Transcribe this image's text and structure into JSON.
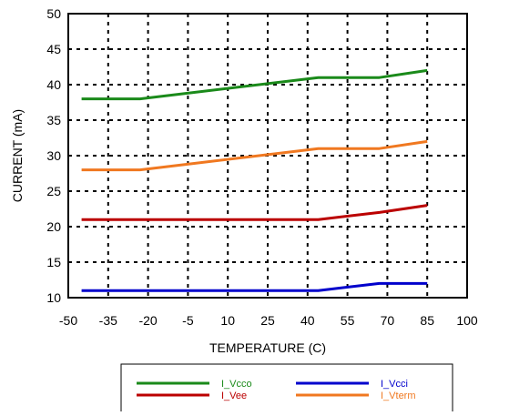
{
  "chart_data": {
    "type": "line",
    "title": "",
    "xlabel": "TEMPERATURE (C)",
    "ylabel": "CURRENT (mA)",
    "xlim": [
      -50,
      100
    ],
    "ylim": [
      10,
      50
    ],
    "x_ticks": [
      -50,
      -35,
      -20,
      -5,
      10,
      25,
      40,
      55,
      70,
      85,
      100
    ],
    "y_ticks": [
      10,
      15,
      20,
      25,
      30,
      35,
      40,
      45,
      50
    ],
    "grid": true,
    "legend_position": "bottom",
    "series": [
      {
        "name": "I_Vcco",
        "color": "#1a8a1a",
        "x": [
          -45,
          -23,
          44,
          67,
          85
        ],
        "y": [
          38,
          38,
          41,
          41,
          42
        ]
      },
      {
        "name": "I_Vcci",
        "color": "#0000cc",
        "x": [
          -45,
          -23,
          44,
          67,
          85
        ],
        "y": [
          11,
          11,
          11,
          12,
          12
        ]
      },
      {
        "name": "I_Vee",
        "color": "#bb0000",
        "x": [
          -45,
          -23,
          44,
          67,
          85
        ],
        "y": [
          21,
          21,
          21,
          22,
          23
        ]
      },
      {
        "name": "I_Vterm",
        "color": "#f07820",
        "x": [
          -45,
          -23,
          44,
          67,
          85
        ],
        "y": [
          28,
          28,
          31,
          31,
          32
        ]
      }
    ]
  }
}
